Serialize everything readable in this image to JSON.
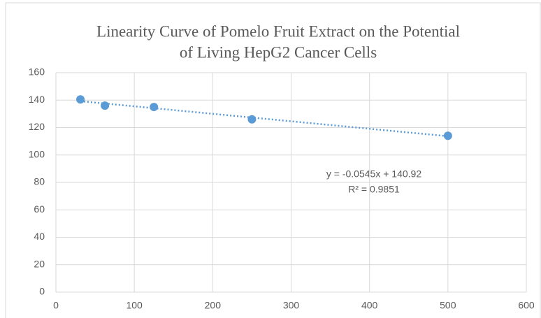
{
  "chart_data": {
    "type": "scatter",
    "title": [
      "Linearity Curve of Pomelo Fruit Extract on the Potential",
      "of Living HepG2 Cancer Cells"
    ],
    "x": [
      31.25,
      62.5,
      125,
      250,
      500
    ],
    "series": [
      {
        "color": "#5b9bd5",
        "values": [
          140.5,
          136,
          135,
          126,
          114
        ]
      }
    ],
    "trendline": {
      "slope": -0.0545,
      "intercept": 140.92,
      "color": "#5b9bd5"
    },
    "annotations": [
      "y = -0.0545x + 140.92",
      "R² = 0.9851"
    ],
    "xlim": [
      0,
      600
    ],
    "xticks": [
      0,
      100,
      200,
      300,
      400,
      500,
      600
    ],
    "ylim": [
      0,
      160
    ],
    "yticks": [
      0,
      20,
      40,
      60,
      80,
      100,
      120,
      140,
      160
    ],
    "grid": true
  }
}
